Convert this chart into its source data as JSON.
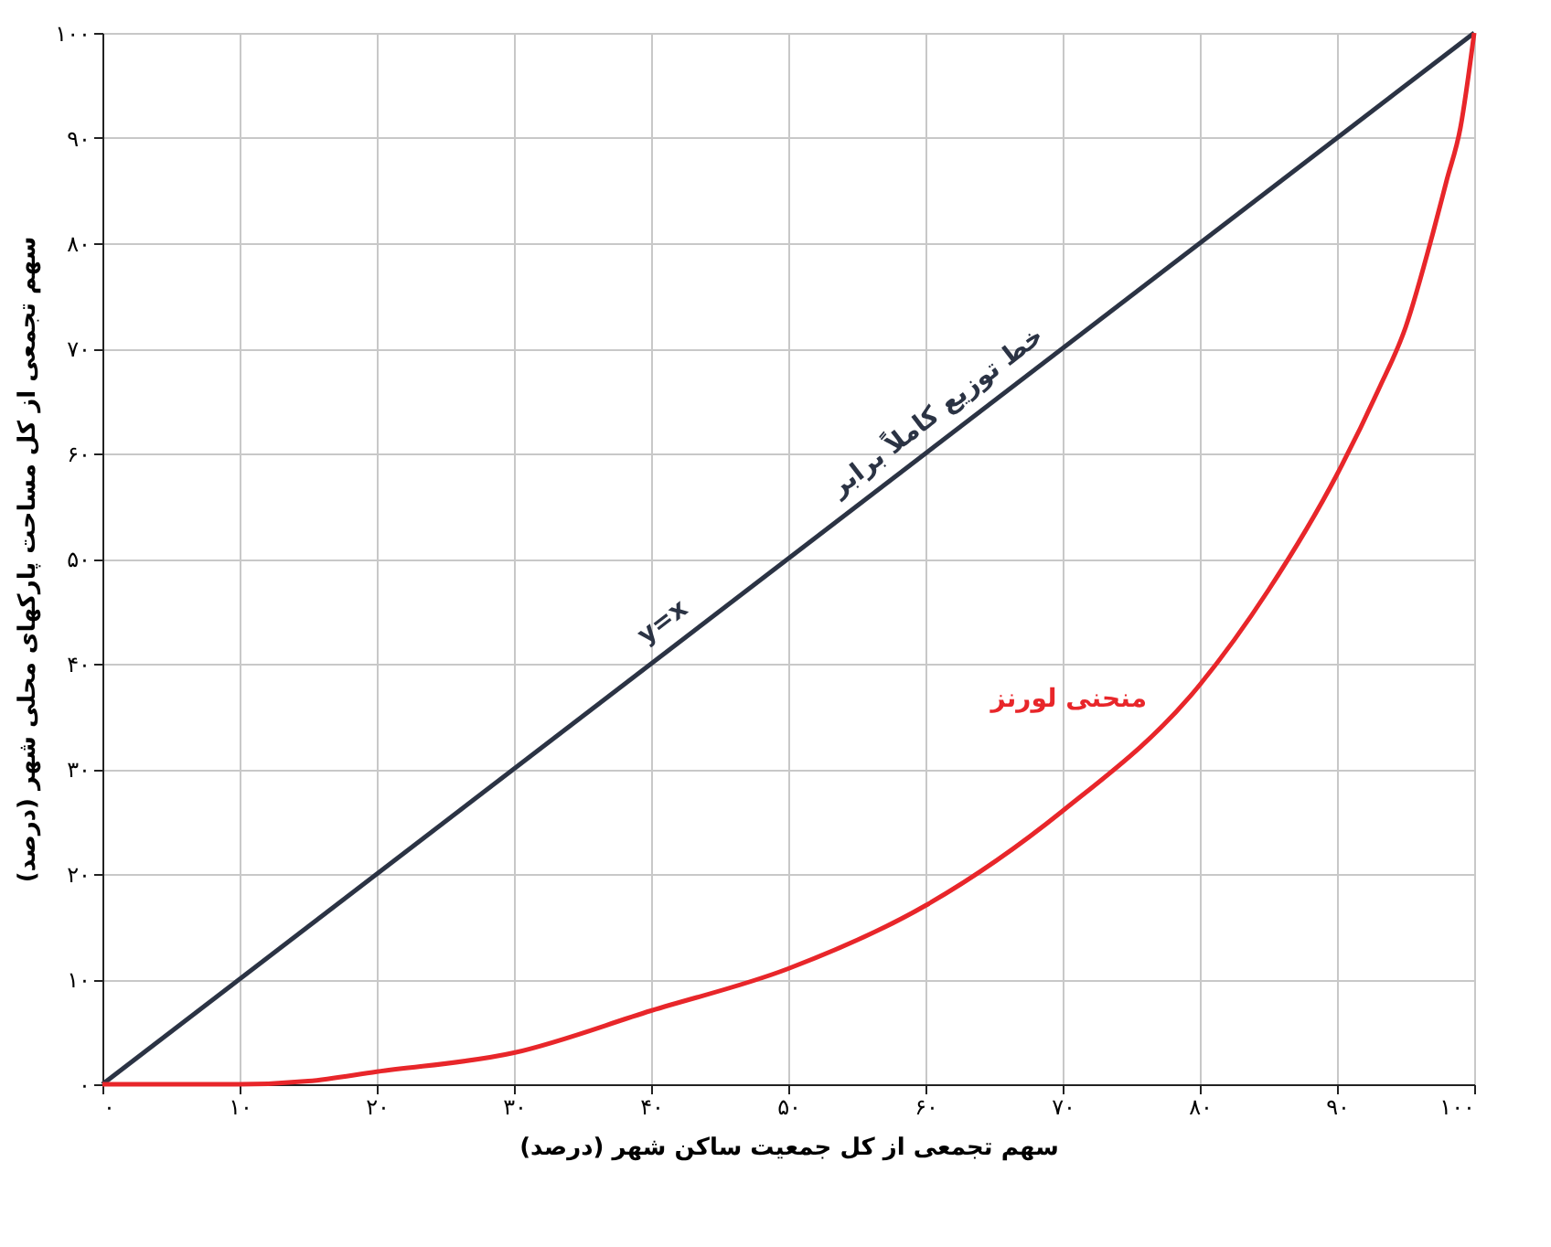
{
  "chart_data": {
    "type": "line",
    "xlabel": "سهم تجمعی از کل جمعیت ساکن شهر (درصد)",
    "ylabel": "سهم تجمعی از کل مساحت پارکهای محلی شهر (درصد)",
    "xlim": [
      0,
      100
    ],
    "ylim": [
      0,
      100
    ],
    "xticks": [
      {
        "value": 0,
        "label": "۰"
      },
      {
        "value": 10,
        "label": "۱۰"
      },
      {
        "value": 20,
        "label": "۲۰"
      },
      {
        "value": 30,
        "label": "۳۰"
      },
      {
        "value": 40,
        "label": "۴۰"
      },
      {
        "value": 50,
        "label": "۵۰"
      },
      {
        "value": 60,
        "label": "۶۰"
      },
      {
        "value": 70,
        "label": "۷۰"
      },
      {
        "value": 80,
        "label": "۸۰"
      },
      {
        "value": 90,
        "label": "۹۰"
      },
      {
        "value": 100,
        "label": "۱۰۰"
      }
    ],
    "yticks": [
      {
        "value": 0,
        "label": "۰"
      },
      {
        "value": 10,
        "label": "۱۰"
      },
      {
        "value": 20,
        "label": "۲۰"
      },
      {
        "value": 30,
        "label": "۳۰"
      },
      {
        "value": 40,
        "label": "۴۰"
      },
      {
        "value": 50,
        "label": "۵۰"
      },
      {
        "value": 60,
        "label": "۶۰"
      },
      {
        "value": 70,
        "label": "۷۰"
      },
      {
        "value": 80,
        "label": "۸۰"
      },
      {
        "value": 90,
        "label": "۹۰"
      },
      {
        "value": 100,
        "label": "۱۰۰"
      }
    ],
    "grid": true,
    "marker": "none",
    "line_style": "solid",
    "series": [
      {
        "name": "خط توزیع کاملاً برابر",
        "color": "#2b3344",
        "x": [
          0,
          100
        ],
        "values": [
          0,
          100
        ]
      },
      {
        "name": "منحنی لورنز",
        "color": "#e8262a",
        "x": [
          0,
          10,
          15,
          20,
          30,
          40,
          50,
          60,
          70,
          80,
          85,
          90,
          93,
          95,
          97,
          98,
          99,
          100
        ],
        "values": [
          0,
          0,
          0.3,
          1.2,
          3,
          7,
          11,
          17,
          26,
          38,
          47,
          58,
          66,
          72,
          81,
          86,
          91,
          100
        ]
      }
    ],
    "annotations": [
      "y=x"
    ]
  }
}
